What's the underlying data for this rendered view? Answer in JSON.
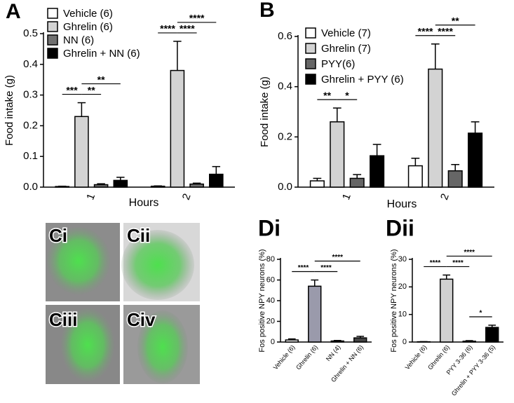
{
  "chart_data": [
    {
      "type": "bar",
      "panel": "A",
      "ylabel": "Food intake (g)",
      "xlabel": "Hours",
      "categories": [
        "1",
        "2"
      ],
      "ylim": [
        0,
        0.5
      ],
      "yticks": [
        {
          "value": 0,
          "label": "0.0"
        },
        0.1,
        0.2,
        0.3,
        0.4,
        0.5
      ],
      "series": [
        {
          "name": "Vehicle (6)",
          "color": "#ffffff",
          "values": [
            0.002,
            0.003
          ],
          "errors": [
            0.001,
            0.001
          ]
        },
        {
          "name": "Ghrelin (6)",
          "color": "#d3d3d3",
          "values": [
            0.23,
            0.38
          ],
          "errors": [
            0.045,
            0.095
          ]
        },
        {
          "name": "NN (6)",
          "color": "#707070",
          "values": [
            0.008,
            0.01
          ],
          "errors": [
            0.003,
            0.003
          ]
        },
        {
          "name": "Ghrelin + NN (6)",
          "color": "#000000",
          "values": [
            0.022,
            0.042
          ],
          "errors": [
            0.01,
            0.025
          ]
        }
      ],
      "annotations": [
        {
          "text": "***",
          "category": 0,
          "between": [
            0,
            1
          ]
        },
        {
          "text": "**",
          "category": 0,
          "between": [
            1,
            2
          ]
        },
        {
          "text": "**",
          "category": 0,
          "between": [
            1,
            3
          ]
        },
        {
          "text": "****",
          "category": 1,
          "between": [
            0,
            1
          ]
        },
        {
          "text": "****",
          "category": 1,
          "between": [
            1,
            2
          ]
        },
        {
          "text": "****",
          "category": 1,
          "between": [
            1,
            3
          ]
        }
      ]
    },
    {
      "type": "bar",
      "panel": "B",
      "ylabel": "Food intake (g)",
      "xlabel": "Hours",
      "categories": [
        "1",
        "2"
      ],
      "ylim": [
        0,
        0.6
      ],
      "yticks": [
        {
          "value": 0,
          "label": "0.0"
        },
        0.2,
        0.4,
        0.6
      ],
      "series": [
        {
          "name": "Vehicle (7)",
          "color": "#ffffff",
          "values": [
            0.025,
            0.085
          ],
          "errors": [
            0.01,
            0.03
          ]
        },
        {
          "name": "Ghrelin (7)",
          "color": "#d3d3d3",
          "values": [
            0.26,
            0.47
          ],
          "errors": [
            0.055,
            0.1
          ]
        },
        {
          "name": "PYY(6)",
          "color": "#666666",
          "values": [
            0.035,
            0.065
          ],
          "errors": [
            0.015,
            0.025
          ]
        },
        {
          "name": "Ghrelin + PYY (6)",
          "color": "#000000",
          "values": [
            0.125,
            0.215
          ],
          "errors": [
            0.045,
            0.045
          ]
        }
      ],
      "annotations": [
        {
          "text": "**",
          "category": 0,
          "between": [
            0,
            1
          ]
        },
        {
          "text": "*",
          "category": 0,
          "between": [
            1,
            2
          ]
        },
        {
          "text": "****",
          "category": 1,
          "between": [
            0,
            1
          ]
        },
        {
          "text": "****",
          "category": 1,
          "between": [
            1,
            2
          ]
        },
        {
          "text": "**",
          "category": 1,
          "between": [
            1,
            3
          ]
        }
      ]
    },
    {
      "type": "bar",
      "panel": "Di",
      "ylabel": "Fos positive NPY neurons (%)",
      "categories": [
        "Vehicle (6)",
        "Ghrelin (6)",
        "NN (4)",
        "Ghrelin + NN (6)"
      ],
      "values": [
        2,
        54,
        1,
        4
      ],
      "errors": [
        1,
        6,
        0.5,
        1.5
      ],
      "colors": [
        "#ffffff",
        "#9a9aab",
        "#555555",
        "#444444"
      ],
      "ylim": [
        0,
        80
      ],
      "yticks": [
        0,
        20,
        40,
        60,
        80
      ],
      "annotations": [
        {
          "text": "****",
          "between": [
            0,
            1
          ]
        },
        {
          "text": "****",
          "between": [
            1,
            2
          ]
        },
        {
          "text": "****",
          "between": [
            1,
            3
          ]
        }
      ]
    },
    {
      "type": "bar",
      "panel": "Dii",
      "ylabel": "Fos positive NPY neurons (%)",
      "categories": [
        "Vehicle (6)",
        "Ghrelin (6)",
        "PYY 3-36 (6)",
        "Ghrelin + PYY 3-36 (5)"
      ],
      "values": [
        0.1,
        22.8,
        0.3,
        5.3
      ],
      "errors": [
        0.05,
        1.5,
        0.2,
        0.8
      ],
      "colors": [
        "#ffffff",
        "#d0d0d0",
        "#555555",
        "#000000"
      ],
      "ylim": [
        0,
        30
      ],
      "yticks": [
        0,
        10,
        20,
        30
      ],
      "annotations": [
        {
          "text": "*",
          "between": [
            2,
            3
          ]
        },
        {
          "text": "****",
          "between": [
            0,
            1
          ]
        },
        {
          "text": "****",
          "between": [
            1,
            2
          ]
        },
        {
          "text": "****",
          "between": [
            1,
            3
          ]
        }
      ]
    }
  ],
  "images": [
    {
      "label": "Ci"
    },
    {
      "label": "Cii"
    },
    {
      "label": "Ciii"
    },
    {
      "label": "Civ"
    }
  ]
}
